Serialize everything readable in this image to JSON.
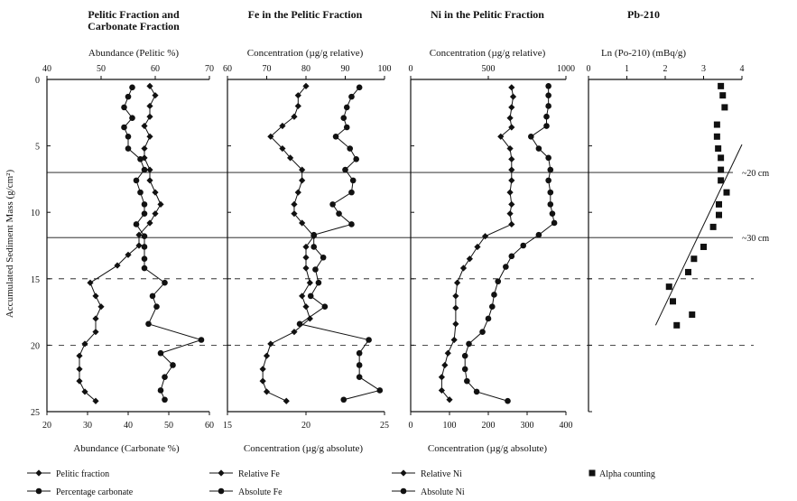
{
  "y_axis_label": "Accumulated Sediment Mass (g/cm²)",
  "y_ticks": [
    "0",
    "5",
    "10",
    "15",
    "20",
    "25"
  ],
  "reference_lines": [
    {
      "depth": 7,
      "label": "~20 cm"
    },
    {
      "depth": 11.9,
      "label": "~30 cm"
    }
  ],
  "panels": [
    {
      "title": "Pelitic Fraction and Carbonate Fraction",
      "title_lines": [
        "Pelitic Fraction and",
        "Carbonate Fraction"
      ],
      "top_axis_label": "Abundance (Pelitic %)",
      "top_ticks": [
        "40",
        "50",
        "60",
        "70"
      ],
      "bottom_axis_label": "Abundance (Carbonate %)",
      "bottom_ticks": [
        "20",
        "30",
        "40",
        "50",
        "60"
      ],
      "legend": [
        "Pelitic fraction",
        "Percentage carbonate"
      ]
    },
    {
      "title": "Fe in the Pelitic Fraction",
      "title_lines": [
        "Fe in the Pelitic Fraction"
      ],
      "top_axis_label": "Concentration (µg/g relative)",
      "top_ticks": [
        "60",
        "70",
        "80",
        "90",
        "100"
      ],
      "bottom_axis_label": "Concentration (µg/g absolute)",
      "bottom_ticks": [
        "15",
        "20",
        "25"
      ],
      "legend": [
        "Relative Fe",
        "Absolute Fe"
      ]
    },
    {
      "title": "Ni in the Pelitic Fraction",
      "title_lines": [
        "Ni in the Pelitic Fraction"
      ],
      "top_axis_label": "Concentration (µg/g relative)",
      "top_ticks": [
        "0",
        "500",
        "1000"
      ],
      "bottom_axis_label": "Concentration (µg/g absolute)",
      "bottom_ticks": [
        "0",
        "100",
        "200",
        "300",
        "400"
      ],
      "legend": [
        "Relative Ni",
        "Absolute Ni"
      ]
    },
    {
      "title": "Pb-210",
      "title_lines": [
        "Pb-210"
      ],
      "top_axis_label": "Ln (Po-210) (mBq/g)",
      "top_ticks": [
        "0",
        "1",
        "2",
        "3",
        "4"
      ],
      "bottom_axis_label": "",
      "bottom_ticks": [],
      "legend": [
        "Alpha counting"
      ]
    }
  ],
  "chart_data": [
    {
      "type": "line",
      "title": "Pelitic Fraction and Carbonate Fraction",
      "ylabel": "Accumulated Sediment Mass (g/cm²)",
      "ylim": [
        0,
        25
      ],
      "top_axis": {
        "label": "Abundance (Pelitic %)",
        "range": [
          40,
          70
        ]
      },
      "bottom_axis": {
        "label": "Abundance (Carbonate %)",
        "range": [
          20,
          60
        ]
      },
      "series": [
        {
          "name": "Pelitic fraction",
          "marker": "diamond",
          "axis": "top",
          "y": [
            0.5,
            1.2,
            2.0,
            2.8,
            3.5,
            4.3,
            5.2,
            5.9,
            6.8,
            7.6,
            8.5,
            9.4,
            10.1,
            10.8,
            11.7,
            12.5,
            13.2,
            14.0,
            15.3,
            16.3,
            17.1,
            18.0,
            19.0,
            19.9,
            20.8,
            21.8,
            22.7,
            23.5,
            24.2
          ],
          "x": [
            59,
            60,
            59,
            59,
            58,
            59,
            58,
            58,
            59,
            59,
            60,
            61,
            60,
            59,
            57,
            57,
            55,
            53,
            48,
            49,
            50,
            49,
            49,
            47,
            46,
            46,
            46,
            47,
            49
          ]
        },
        {
          "name": "Percentage carbonate",
          "marker": "circle",
          "axis": "bottom",
          "y": [
            0.6,
            1.3,
            2.1,
            2.9,
            3.6,
            4.3,
            5.2,
            6.0,
            6.8,
            7.6,
            8.5,
            9.4,
            10.1,
            10.9,
            11.8,
            12.6,
            13.5,
            14.2,
            15.3,
            16.3,
            17.1,
            18.4,
            19.6,
            20.6,
            21.5,
            22.4,
            23.4,
            24.1
          ],
          "x": [
            41,
            40,
            39,
            41,
            39,
            40,
            40,
            43,
            44,
            42,
            43,
            44,
            44,
            42,
            44,
            44,
            44,
            44,
            49,
            46,
            47,
            45,
            58,
            48,
            51,
            49,
            48,
            49
          ]
        }
      ]
    },
    {
      "type": "line",
      "title": "Fe in the Pelitic Fraction",
      "ylabel": "Accumulated Sediment Mass (g/cm²)",
      "ylim": [
        0,
        25
      ],
      "top_axis": {
        "label": "Concentration (µg/g relative)",
        "range": [
          60,
          100
        ]
      },
      "bottom_axis": {
        "label": "Concentration (µg/g absolute)",
        "range": [
          15,
          25
        ]
      },
      "series": [
        {
          "name": "Relative Fe",
          "marker": "diamond",
          "axis": "top",
          "y": [
            0.5,
            1.2,
            2.0,
            2.8,
            3.5,
            4.3,
            5.2,
            5.9,
            6.8,
            7.6,
            8.5,
            9.4,
            10.1,
            10.8,
            11.8,
            12.6,
            13.4,
            14.2,
            15.3,
            16.3,
            17.1,
            18.0,
            19.0,
            19.9,
            20.8,
            21.8,
            22.7,
            23.5,
            24.2
          ],
          "x": [
            80,
            78,
            78,
            77,
            74,
            71,
            74,
            76,
            79,
            79,
            78,
            77,
            77,
            79,
            82,
            80,
            80,
            80,
            81,
            79,
            80,
            81,
            77,
            71,
            70,
            69,
            69,
            70,
            75
          ]
        },
        {
          "name": "Absolute Fe",
          "marker": "circle",
          "axis": "bottom",
          "y": [
            0.6,
            1.3,
            2.1,
            2.9,
            3.6,
            4.3,
            5.2,
            6.0,
            6.8,
            7.6,
            8.5,
            9.4,
            10.1,
            10.9,
            11.7,
            12.6,
            13.4,
            14.3,
            15.3,
            16.3,
            17.1,
            18.4,
            19.6,
            20.6,
            21.5,
            22.4,
            23.4,
            24.1
          ],
          "x": [
            23.4,
            22.9,
            22.6,
            22.4,
            22.6,
            21.9,
            22.8,
            23.2,
            22.5,
            23.0,
            22.9,
            21.7,
            22.1,
            22.9,
            20.5,
            20.5,
            21.1,
            20.6,
            20.8,
            20.3,
            21.2,
            19.6,
            24.0,
            23.4,
            23.4,
            23.4,
            24.7,
            22.4
          ]
        }
      ]
    },
    {
      "type": "line",
      "title": "Ni in the Pelitic Fraction",
      "ylabel": "Accumulated Sediment Mass (g/cm²)",
      "ylim": [
        0,
        25
      ],
      "top_axis": {
        "label": "Concentration (µg/g relative)",
        "range": [
          0,
          1000
        ]
      },
      "bottom_axis": {
        "label": "Concentration (µg/g absolute)",
        "range": [
          0,
          400
        ]
      },
      "series": [
        {
          "name": "Relative Ni",
          "marker": "diamond",
          "axis": "top",
          "y": [
            0.6,
            1.3,
            2.1,
            2.9,
            3.6,
            4.3,
            5.2,
            6.0,
            6.8,
            7.6,
            8.5,
            9.4,
            10.1,
            10.9,
            11.8,
            12.6,
            13.5,
            14.2,
            15.3,
            16.3,
            17.2,
            18.4,
            19.6,
            20.6,
            21.5,
            22.4,
            23.4,
            24.1
          ],
          "x": [
            650,
            660,
            650,
            640,
            650,
            580,
            640,
            650,
            650,
            650,
            640,
            650,
            640,
            650,
            480,
            430,
            380,
            340,
            300,
            290,
            290,
            290,
            280,
            240,
            220,
            200,
            200,
            250
          ]
        },
        {
          "name": "Absolute Ni",
          "marker": "circle",
          "axis": "bottom",
          "y": [
            0.5,
            1.2,
            2.0,
            2.8,
            3.5,
            4.3,
            5.2,
            5.9,
            6.8,
            7.6,
            8.5,
            9.4,
            10.1,
            10.8,
            11.7,
            12.5,
            13.3,
            14.1,
            15.2,
            16.2,
            17.1,
            18.0,
            19.0,
            19.9,
            20.8,
            21.8,
            22.7,
            23.5,
            24.2
          ],
          "x": [
            355,
            355,
            355,
            350,
            350,
            310,
            330,
            355,
            360,
            355,
            360,
            360,
            365,
            370,
            330,
            290,
            260,
            245,
            225,
            215,
            210,
            200,
            185,
            150,
            140,
            140,
            145,
            170,
            250
          ]
        }
      ]
    },
    {
      "type": "scatter",
      "title": "Pb-210",
      "ylabel": "Accumulated Sediment Mass (g/cm²)",
      "ylim": [
        0,
        25
      ],
      "top_axis": {
        "label": "Ln (Po-210) (mBq/g)",
        "range": [
          0,
          4
        ]
      },
      "series": [
        {
          "name": "Alpha counting",
          "marker": "square",
          "y": [
            0.5,
            1.2,
            2.1,
            3.4,
            4.3,
            5.2,
            5.9,
            6.8,
            7.6,
            8.5,
            9.4,
            10.2,
            11.1,
            12.6,
            13.5,
            14.5,
            15.6,
            16.7,
            17.7,
            18.5
          ],
          "x": [
            3.45,
            3.5,
            3.55,
            3.35,
            3.35,
            3.38,
            3.45,
            3.45,
            3.45,
            3.6,
            3.4,
            3.4,
            3.25,
            3.0,
            2.75,
            2.6,
            2.1,
            2.2,
            2.7,
            2.3
          ]
        },
        {
          "name": "",
          "type": "regression-line",
          "x": [
            4.0,
            1.75
          ],
          "y": [
            4.9,
            18.5
          ]
        }
      ]
    }
  ]
}
